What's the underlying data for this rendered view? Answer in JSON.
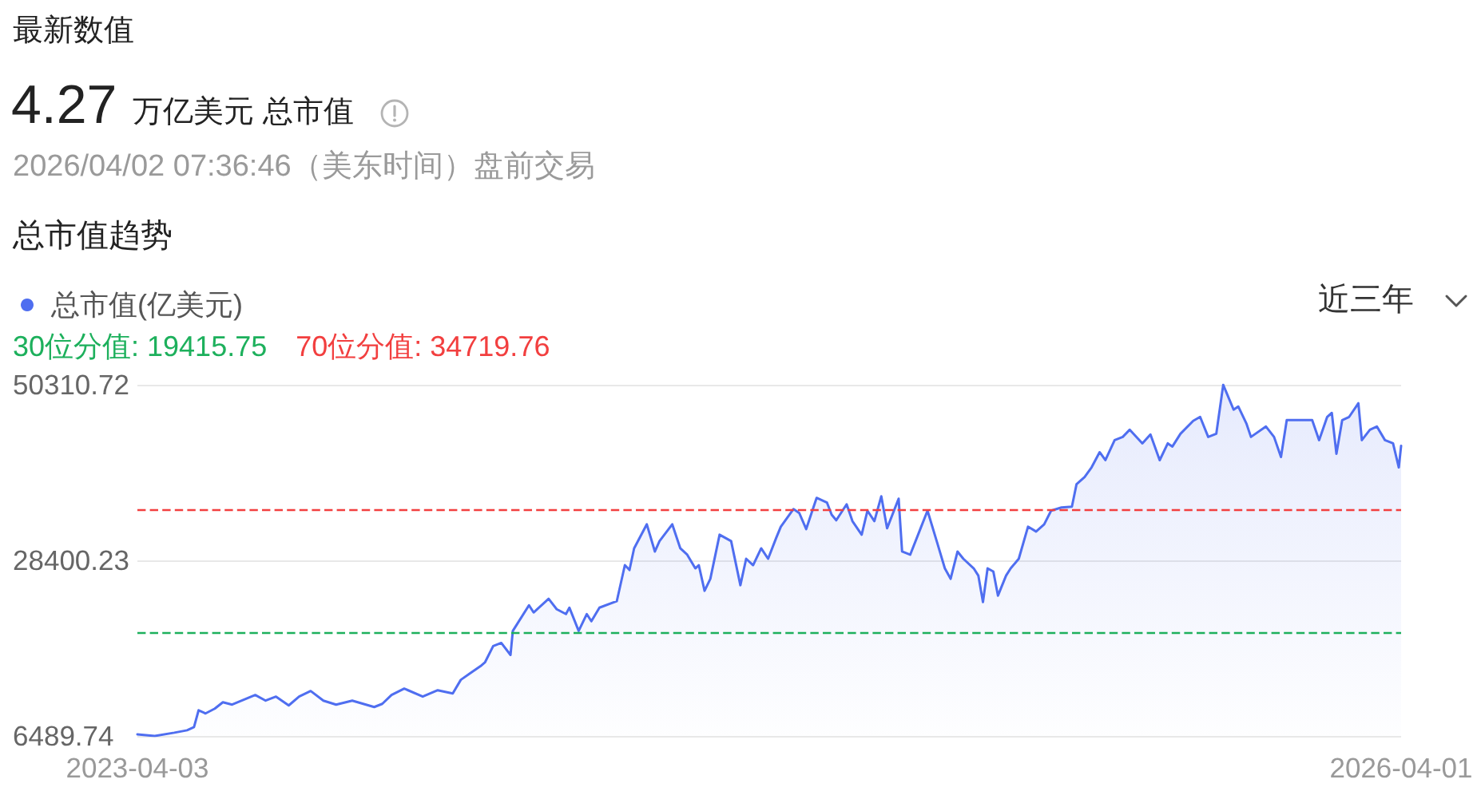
{
  "chart_data": {
    "type": "area",
    "title": "总市值趋势",
    "annotations": [
      "最新数值",
      "4.27",
      "万亿美元 总市值",
      "2026/04/02 07:36:46（美东时间）盘前交易",
      "近三年"
    ],
    "x": [
      "2023-04-03",
      "2023-04-18",
      "2023-05-05",
      "2023-05-16",
      "2023-05-22",
      "2023-05-26",
      "2023-06-01",
      "2023-06-09",
      "2023-06-16",
      "2023-06-24",
      "2023-07-14",
      "2023-07-23",
      "2023-08-01",
      "2023-08-12",
      "2023-08-21",
      "2023-08-31",
      "2023-09-11",
      "2023-09-22",
      "2023-10-06",
      "2023-10-25",
      "2023-11-01",
      "2023-11-09",
      "2023-11-20",
      "2023-12-06",
      "2023-12-19",
      "2024-01-01",
      "2024-01-08",
      "2024-01-16",
      "2024-01-25",
      "2024-01-29",
      "2024-02-05",
      "2024-02-12",
      "2024-02-20",
      "2024-02-22",
      "2024-03-07",
      "2024-03-11",
      "2024-03-24",
      "2024-03-31",
      "2024-04-08",
      "2024-04-11",
      "2024-04-19",
      "2024-04-26",
      "2024-04-30",
      "2024-05-07",
      "2024-05-22",
      "2024-05-29",
      "2024-06-02",
      "2024-06-06",
      "2024-06-17",
      "2024-06-24",
      "2024-06-28",
      "2024-07-09",
      "2024-07-16",
      "2024-07-22",
      "2024-07-29",
      "2024-08-01",
      "2024-08-06",
      "2024-08-11",
      "2024-08-19",
      "2024-08-29",
      "2024-09-06",
      "2024-09-11",
      "2024-09-17",
      "2024-09-24",
      "2024-09-30",
      "2024-10-07",
      "2024-10-11",
      "2024-10-22",
      "2024-10-27",
      "2024-11-02",
      "2024-11-11",
      "2024-11-20",
      "2024-11-24",
      "2024-11-28",
      "2024-12-07",
      "2024-12-12",
      "2024-12-20",
      "2024-12-25",
      "2024-12-31",
      "2025-01-06",
      "2025-01-11",
      "2025-01-21",
      "2025-01-24",
      "2025-01-31",
      "2025-02-09",
      "2025-02-15",
      "2025-02-24",
      "2025-03-02",
      "2025-03-07",
      "2025-03-13",
      "2025-03-18",
      "2025-03-27",
      "2025-03-31",
      "2025-04-04",
      "2025-04-08",
      "2025-04-13",
      "2025-04-17",
      "2025-04-24",
      "2025-04-28",
      "2025-05-05",
      "2025-05-13",
      "2025-05-20",
      "2025-05-27",
      "2025-06-02",
      "2025-06-11",
      "2025-06-20",
      "2025-06-24",
      "2025-07-01",
      "2025-07-07",
      "2025-07-14",
      "2025-07-19",
      "2025-07-27",
      "2025-08-03",
      "2025-08-09",
      "2025-08-20",
      "2025-08-27",
      "2025-09-04",
      "2025-09-11",
      "2025-09-15",
      "2025-09-22",
      "2025-10-03",
      "2025-10-09",
      "2025-10-16",
      "2025-10-23",
      "2025-10-29",
      "2025-11-07",
      "2025-11-11",
      "2025-11-18",
      "2025-11-22",
      "2025-12-05",
      "2025-12-12",
      "2025-12-18",
      "2025-12-23",
      "2025-12-31",
      "2026-01-14",
      "2026-01-20",
      "2026-01-27",
      "2026-01-31",
      "2026-02-04",
      "2026-02-09",
      "2026-02-15",
      "2026-02-23",
      "2026-02-26",
      "2026-03-05",
      "2026-03-11",
      "2026-03-18",
      "2026-03-25",
      "2026-03-30",
      "2026-04-01"
    ],
    "series": [
      {
        "name": "总市值(亿美元)",
        "color": "#4f6ef0",
        "values": [
          6700,
          6500,
          6900,
          7200,
          7600,
          9700,
          9300,
          9900,
          10700,
          10400,
          11600,
          10900,
          11400,
          10300,
          11400,
          12100,
          10900,
          10400,
          10900,
          10100,
          10500,
          11600,
          12400,
          11400,
          12200,
          11800,
          13500,
          14300,
          15200,
          15700,
          17700,
          18100,
          16600,
          19600,
          22800,
          21900,
          23600,
          22300,
          21700,
          22500,
          19600,
          21700,
          20800,
          22500,
          23300,
          27800,
          27200,
          29900,
          32900,
          29500,
          30800,
          32900,
          29900,
          29100,
          27400,
          27800,
          24600,
          26100,
          31600,
          30800,
          25300,
          28600,
          27800,
          29900,
          28600,
          31200,
          32600,
          34800,
          34300,
          32300,
          36200,
          35600,
          34100,
          33400,
          35400,
          33300,
          31600,
          34600,
          33300,
          36400,
          32400,
          36100,
          29500,
          29100,
          32400,
          34600,
          30300,
          27400,
          26100,
          29500,
          28600,
          27400,
          26500,
          23200,
          27400,
          27000,
          24000,
          26500,
          27400,
          28600,
          32600,
          32000,
          32900,
          34600,
          35000,
          35100,
          37900,
          38800,
          40000,
          41900,
          40900,
          43400,
          43800,
          44700,
          43000,
          44100,
          40900,
          43000,
          42600,
          44200,
          45800,
          46300,
          43800,
          44200,
          50300,
          47200,
          47600,
          45500,
          43800,
          45100,
          43800,
          41300,
          45900,
          45900,
          45900,
          43400,
          46300,
          46800,
          41700,
          45900,
          46300,
          48000,
          43400,
          44700,
          45100,
          43400,
          43000,
          40000,
          42700
        ]
      }
    ],
    "xlim": [
      "2023-04-03",
      "2026-04-01"
    ],
    "xticks": [
      "2023-04-03",
      "2026-04-01"
    ],
    "ylim": [
      6489.74,
      50310.72
    ],
    "yticks": [
      6489.74,
      28400.23,
      50310.72
    ],
    "ref_lines": [
      {
        "axis": "y",
        "value": 19415.75,
        "label": "30位分值: 19415.75",
        "color": "#1db05c",
        "line_style": "dashed"
      },
      {
        "axis": "y",
        "value": 34719.76,
        "label": "70位分值: 34719.76",
        "color": "#f23f3f",
        "line_style": "dashed"
      }
    ],
    "grid": "y",
    "legend": "top left"
  }
}
